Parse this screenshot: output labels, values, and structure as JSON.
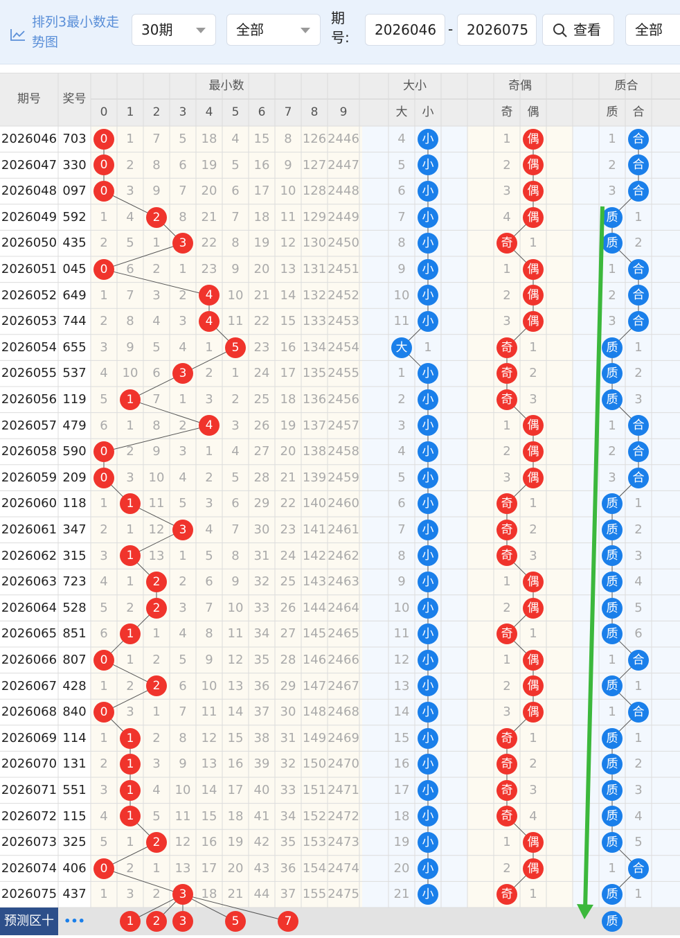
{
  "header": {
    "title": "排列3最小数走势图",
    "period_select": "30期",
    "scope_select": "全部",
    "issue_label": "期号:",
    "issue_from": "2026046",
    "issue_to": "2026075",
    "dash": "-",
    "view_button": "查看",
    "scope_select_2": "全部"
  },
  "table": {
    "h_issue": "期号",
    "h_prize": "奖号",
    "g_min": "最小数",
    "g_size": "大小",
    "g_parity": "奇偶",
    "g_prime": "质合",
    "digits": [
      "0",
      "1",
      "2",
      "3",
      "4",
      "5",
      "6",
      "7",
      "8",
      "9"
    ],
    "size_cols": [
      "大",
      "小"
    ],
    "parity_cols": [
      "奇",
      "偶"
    ],
    "prime_cols": [
      "质",
      "合"
    ]
  },
  "rows": [
    {
      "issue": "2026046",
      "prize": "703",
      "m": [
        "0",
        "1",
        "7",
        "5",
        "18",
        "4",
        "15",
        "8",
        "126",
        "2446"
      ],
      "hit": 0,
      "s": [
        "4",
        "小"
      ],
      "sh": 1,
      "p": [
        "1",
        "偶"
      ],
      "ph": 1,
      "q": [
        "1",
        "合"
      ],
      "qh": 1
    },
    {
      "issue": "2026047",
      "prize": "330",
      "m": [
        "0",
        "2",
        "8",
        "6",
        "19",
        "5",
        "16",
        "9",
        "127",
        "2447"
      ],
      "hit": 0,
      "s": [
        "5",
        "小"
      ],
      "sh": 1,
      "p": [
        "2",
        "偶"
      ],
      "ph": 1,
      "q": [
        "2",
        "合"
      ],
      "qh": 1
    },
    {
      "issue": "2026048",
      "prize": "097",
      "m": [
        "0",
        "3",
        "9",
        "7",
        "20",
        "6",
        "17",
        "10",
        "128",
        "2448"
      ],
      "hit": 0,
      "s": [
        "6",
        "小"
      ],
      "sh": 1,
      "p": [
        "3",
        "偶"
      ],
      "ph": 1,
      "q": [
        "3",
        "合"
      ],
      "qh": 1
    },
    {
      "issue": "2026049",
      "prize": "592",
      "m": [
        "1",
        "4",
        "2",
        "8",
        "21",
        "7",
        "18",
        "11",
        "129",
        "2449"
      ],
      "hit": 2,
      "s": [
        "7",
        "小"
      ],
      "sh": 1,
      "p": [
        "4",
        "偶"
      ],
      "ph": 1,
      "q": [
        "质",
        "1"
      ],
      "qh": 0
    },
    {
      "issue": "2026050",
      "prize": "435",
      "m": [
        "2",
        "5",
        "1",
        "3",
        "22",
        "8",
        "19",
        "12",
        "130",
        "2450"
      ],
      "hit": 3,
      "s": [
        "8",
        "小"
      ],
      "sh": 1,
      "p": [
        "奇",
        "1"
      ],
      "ph": 0,
      "q": [
        "质",
        "2"
      ],
      "qh": 0
    },
    {
      "issue": "2026051",
      "prize": "045",
      "m": [
        "0",
        "6",
        "2",
        "1",
        "23",
        "9",
        "20",
        "13",
        "131",
        "2451"
      ],
      "hit": 0,
      "s": [
        "9",
        "小"
      ],
      "sh": 1,
      "p": [
        "1",
        "偶"
      ],
      "ph": 1,
      "q": [
        "1",
        "合"
      ],
      "qh": 1
    },
    {
      "issue": "2026052",
      "prize": "649",
      "m": [
        "1",
        "7",
        "3",
        "2",
        "4",
        "10",
        "21",
        "14",
        "132",
        "2452"
      ],
      "hit": 4,
      "s": [
        "10",
        "小"
      ],
      "sh": 1,
      "p": [
        "2",
        "偶"
      ],
      "ph": 1,
      "q": [
        "2",
        "合"
      ],
      "qh": 1
    },
    {
      "issue": "2026053",
      "prize": "744",
      "m": [
        "2",
        "8",
        "4",
        "3",
        "4",
        "11",
        "22",
        "15",
        "133",
        "2453"
      ],
      "hit": 4,
      "s": [
        "11",
        "小"
      ],
      "sh": 1,
      "p": [
        "3",
        "偶"
      ],
      "ph": 1,
      "q": [
        "3",
        "合"
      ],
      "qh": 1
    },
    {
      "issue": "2026054",
      "prize": "655",
      "m": [
        "3",
        "9",
        "5",
        "4",
        "1",
        "5",
        "23",
        "16",
        "134",
        "2454"
      ],
      "hit": 5,
      "s": [
        "大",
        "1"
      ],
      "sh": 0,
      "p": [
        "奇",
        "1"
      ],
      "ph": 0,
      "q": [
        "质",
        "1"
      ],
      "qh": 0
    },
    {
      "issue": "2026055",
      "prize": "537",
      "m": [
        "4",
        "10",
        "6",
        "3",
        "2",
        "1",
        "24",
        "17",
        "135",
        "2455"
      ],
      "hit": 3,
      "s": [
        "1",
        "小"
      ],
      "sh": 1,
      "p": [
        "奇",
        "2"
      ],
      "ph": 0,
      "q": [
        "质",
        "2"
      ],
      "qh": 0
    },
    {
      "issue": "2026056",
      "prize": "119",
      "m": [
        "5",
        "1",
        "7",
        "1",
        "3",
        "2",
        "25",
        "18",
        "136",
        "2456"
      ],
      "hit": 1,
      "s": [
        "2",
        "小"
      ],
      "sh": 1,
      "p": [
        "奇",
        "3"
      ],
      "ph": 0,
      "q": [
        "质",
        "3"
      ],
      "qh": 0
    },
    {
      "issue": "2026057",
      "prize": "479",
      "m": [
        "6",
        "1",
        "8",
        "2",
        "4",
        "3",
        "26",
        "19",
        "137",
        "2457"
      ],
      "hit": 4,
      "s": [
        "3",
        "小"
      ],
      "sh": 1,
      "p": [
        "1",
        "偶"
      ],
      "ph": 1,
      "q": [
        "1",
        "合"
      ],
      "qh": 1
    },
    {
      "issue": "2026058",
      "prize": "590",
      "m": [
        "0",
        "2",
        "9",
        "3",
        "1",
        "4",
        "27",
        "20",
        "138",
        "2458"
      ],
      "hit": 0,
      "s": [
        "4",
        "小"
      ],
      "sh": 1,
      "p": [
        "2",
        "偶"
      ],
      "ph": 1,
      "q": [
        "2",
        "合"
      ],
      "qh": 1
    },
    {
      "issue": "2026059",
      "prize": "209",
      "m": [
        "0",
        "3",
        "10",
        "4",
        "2",
        "5",
        "28",
        "21",
        "139",
        "2459"
      ],
      "hit": 0,
      "s": [
        "5",
        "小"
      ],
      "sh": 1,
      "p": [
        "3",
        "偶"
      ],
      "ph": 1,
      "q": [
        "3",
        "合"
      ],
      "qh": 1
    },
    {
      "issue": "2026060",
      "prize": "118",
      "m": [
        "1",
        "1",
        "11",
        "5",
        "3",
        "6",
        "29",
        "22",
        "140",
        "2460"
      ],
      "hit": 1,
      "s": [
        "6",
        "小"
      ],
      "sh": 1,
      "p": [
        "奇",
        "1"
      ],
      "ph": 0,
      "q": [
        "质",
        "1"
      ],
      "qh": 0
    },
    {
      "issue": "2026061",
      "prize": "347",
      "m": [
        "2",
        "1",
        "12",
        "3",
        "4",
        "7",
        "30",
        "23",
        "141",
        "2461"
      ],
      "hit": 3,
      "s": [
        "7",
        "小"
      ],
      "sh": 1,
      "p": [
        "奇",
        "2"
      ],
      "ph": 0,
      "q": [
        "质",
        "2"
      ],
      "qh": 0
    },
    {
      "issue": "2026062",
      "prize": "315",
      "m": [
        "3",
        "1",
        "13",
        "1",
        "5",
        "8",
        "31",
        "24",
        "142",
        "2462"
      ],
      "hit": 1,
      "s": [
        "8",
        "小"
      ],
      "sh": 1,
      "p": [
        "奇",
        "3"
      ],
      "ph": 0,
      "q": [
        "质",
        "3"
      ],
      "qh": 0
    },
    {
      "issue": "2026063",
      "prize": "723",
      "m": [
        "4",
        "1",
        "2",
        "2",
        "6",
        "9",
        "32",
        "25",
        "143",
        "2463"
      ],
      "hit": 2,
      "s": [
        "9",
        "小"
      ],
      "sh": 1,
      "p": [
        "1",
        "偶"
      ],
      "ph": 1,
      "q": [
        "质",
        "4"
      ],
      "qh": 0
    },
    {
      "issue": "2026064",
      "prize": "528",
      "m": [
        "5",
        "2",
        "2",
        "3",
        "7",
        "10",
        "33",
        "26",
        "144",
        "2464"
      ],
      "hit": 2,
      "s": [
        "10",
        "小"
      ],
      "sh": 1,
      "p": [
        "2",
        "偶"
      ],
      "ph": 1,
      "q": [
        "质",
        "5"
      ],
      "qh": 0
    },
    {
      "issue": "2026065",
      "prize": "851",
      "m": [
        "6",
        "1",
        "1",
        "4",
        "8",
        "11",
        "34",
        "27",
        "145",
        "2465"
      ],
      "hit": 1,
      "s": [
        "11",
        "小"
      ],
      "sh": 1,
      "p": [
        "奇",
        "1"
      ],
      "ph": 0,
      "q": [
        "质",
        "6"
      ],
      "qh": 0
    },
    {
      "issue": "2026066",
      "prize": "807",
      "m": [
        "0",
        "1",
        "2",
        "5",
        "9",
        "12",
        "35",
        "28",
        "146",
        "2466"
      ],
      "hit": 0,
      "s": [
        "12",
        "小"
      ],
      "sh": 1,
      "p": [
        "1",
        "偶"
      ],
      "ph": 1,
      "q": [
        "1",
        "合"
      ],
      "qh": 1
    },
    {
      "issue": "2026067",
      "prize": "428",
      "m": [
        "1",
        "2",
        "2",
        "6",
        "10",
        "13",
        "36",
        "29",
        "147",
        "2467"
      ],
      "hit": 2,
      "s": [
        "13",
        "小"
      ],
      "sh": 1,
      "p": [
        "2",
        "偶"
      ],
      "ph": 1,
      "q": [
        "质",
        "1"
      ],
      "qh": 0
    },
    {
      "issue": "2026068",
      "prize": "840",
      "m": [
        "0",
        "3",
        "1",
        "7",
        "11",
        "14",
        "37",
        "30",
        "148",
        "2468"
      ],
      "hit": 0,
      "s": [
        "14",
        "小"
      ],
      "sh": 1,
      "p": [
        "3",
        "偶"
      ],
      "ph": 1,
      "q": [
        "1",
        "合"
      ],
      "qh": 1
    },
    {
      "issue": "2026069",
      "prize": "114",
      "m": [
        "1",
        "1",
        "2",
        "8",
        "12",
        "15",
        "38",
        "31",
        "149",
        "2469"
      ],
      "hit": 1,
      "s": [
        "15",
        "小"
      ],
      "sh": 1,
      "p": [
        "奇",
        "1"
      ],
      "ph": 0,
      "q": [
        "质",
        "1"
      ],
      "qh": 0
    },
    {
      "issue": "2026070",
      "prize": "131",
      "m": [
        "2",
        "1",
        "3",
        "9",
        "13",
        "16",
        "39",
        "32",
        "150",
        "2470"
      ],
      "hit": 1,
      "s": [
        "16",
        "小"
      ],
      "sh": 1,
      "p": [
        "奇",
        "2"
      ],
      "ph": 0,
      "q": [
        "质",
        "2"
      ],
      "qh": 0
    },
    {
      "issue": "2026071",
      "prize": "551",
      "m": [
        "3",
        "1",
        "4",
        "10",
        "14",
        "17",
        "40",
        "33",
        "151",
        "2471"
      ],
      "hit": 1,
      "s": [
        "17",
        "小"
      ],
      "sh": 1,
      "p": [
        "奇",
        "3"
      ],
      "ph": 0,
      "q": [
        "质",
        "3"
      ],
      "qh": 0
    },
    {
      "issue": "2026072",
      "prize": "115",
      "m": [
        "4",
        "1",
        "5",
        "11",
        "15",
        "18",
        "41",
        "34",
        "152",
        "2472"
      ],
      "hit": 1,
      "s": [
        "18",
        "小"
      ],
      "sh": 1,
      "p": [
        "奇",
        "4"
      ],
      "ph": 0,
      "q": [
        "质",
        "4"
      ],
      "qh": 0
    },
    {
      "issue": "2026073",
      "prize": "325",
      "m": [
        "5",
        "1",
        "2",
        "12",
        "16",
        "19",
        "42",
        "35",
        "153",
        "2473"
      ],
      "hit": 2,
      "s": [
        "19",
        "小"
      ],
      "sh": 1,
      "p": [
        "1",
        "偶"
      ],
      "ph": 1,
      "q": [
        "质",
        "5"
      ],
      "qh": 0
    },
    {
      "issue": "2026074",
      "prize": "406",
      "m": [
        "0",
        "2",
        "1",
        "13",
        "17",
        "20",
        "43",
        "36",
        "154",
        "2474"
      ],
      "hit": 0,
      "s": [
        "20",
        "小"
      ],
      "sh": 1,
      "p": [
        "2",
        "偶"
      ],
      "ph": 1,
      "q": [
        "1",
        "合"
      ],
      "qh": 1
    },
    {
      "issue": "2026075",
      "prize": "437",
      "m": [
        "1",
        "3",
        "2",
        "3",
        "18",
        "21",
        "44",
        "37",
        "155",
        "2475"
      ],
      "hit": 3,
      "s": [
        "21",
        "小"
      ],
      "sh": 1,
      "p": [
        "奇",
        "1"
      ],
      "ph": 0,
      "q": [
        "质",
        "1"
      ],
      "qh": 0
    }
  ],
  "predict": {
    "label": "预测区",
    "plus": "十",
    "more": "•••",
    "balls": [
      {
        "col": 1,
        "text": "1"
      },
      {
        "col": 2,
        "text": "2"
      },
      {
        "col": 3,
        "text": "3"
      },
      {
        "col": 5,
        "text": "5"
      },
      {
        "col": 7,
        "text": "7"
      }
    ],
    "prime_ball": "质"
  },
  "colors": {
    "red": "#f0342c",
    "blue": "#1a7fea",
    "arrow": "#3cb83c"
  }
}
